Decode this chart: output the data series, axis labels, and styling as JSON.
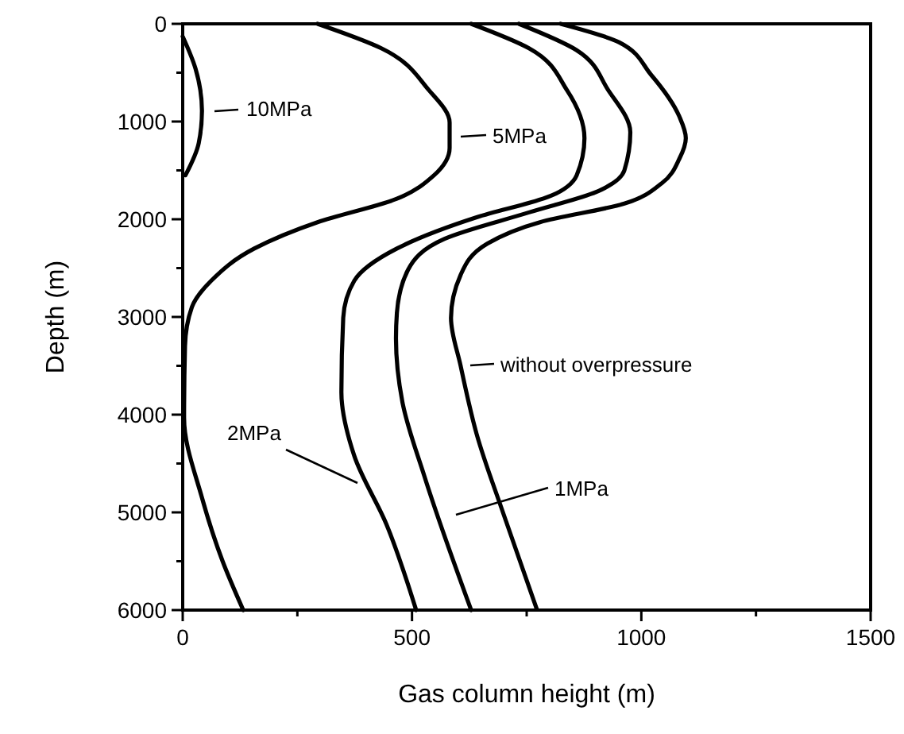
{
  "chart_data": {
    "type": "line",
    "xlabel": "Gas column height (m)",
    "ylabel": "Depth (m)",
    "xlim": [
      0,
      1500
    ],
    "ylim": [
      6000,
      0
    ],
    "xticks": [
      0,
      {
        "value": 250,
        "label": null
      },
      500,
      {
        "value": 750,
        "label": null
      },
      1000,
      {
        "value": 1250,
        "label": null
      },
      1500
    ],
    "yticks": [
      0,
      {
        "value": 500,
        "label": null
      },
      1000,
      {
        "value": 1500,
        "label": null
      },
      2000,
      {
        "value": 2500,
        "label": null
      },
      3000,
      {
        "value": 3500,
        "label": null
      },
      4000,
      {
        "value": 4500,
        "label": null
      },
      5000,
      {
        "value": 5500,
        "label": null
      },
      6000
    ],
    "grid": false,
    "legend": "center",
    "marker": "none",
    "line_style": "solid",
    "series": [
      {
        "name": "10MPa",
        "color": "#000000",
        "x": [
          0,
          28,
          42,
          35,
          6
        ],
        "values": [
          130,
          460,
          890,
          1220,
          1550
        ]
      },
      {
        "name": "5MPa",
        "color": "#000000",
        "x": [
          294,
          433,
          537,
          582,
          582,
          548,
          467,
          294,
          156,
          62,
          20,
          5,
          3,
          42,
          87,
          132
        ],
        "values": [
          0,
          250,
          680,
          1010,
          1270,
          1550,
          1790,
          2030,
          2300,
          2630,
          2900,
          3300,
          4030,
          4850,
          5500,
          6000
        ]
      },
      {
        "name": "2MPa",
        "color": "#000000",
        "x": [
          629,
          755,
          838,
          876,
          859,
          803,
          641,
          467,
          374,
          350,
          346,
          374,
          444,
          509
        ],
        "values": [
          0,
          250,
          680,
          1170,
          1550,
          1760,
          1980,
          2300,
          2630,
          3010,
          3770,
          4420,
          5120,
          6000
        ]
      },
      {
        "name": "1MPa",
        "color": "#000000",
        "x": [
          733,
          859,
          928,
          976,
          963,
          907,
          755,
          571,
          491,
          467,
          465,
          479,
          527,
          629
        ],
        "values": [
          0,
          270,
          680,
          1110,
          1500,
          1710,
          1930,
          2200,
          2520,
          2960,
          3220,
          3870,
          4630,
          6000
        ]
      },
      {
        "name": "without overpressure",
        "color": "#000000",
        "x": [
          824,
          952,
          1021,
          1083,
          1097,
          1083,
          1045,
          963,
          779,
          664,
          606,
          585,
          606,
          641,
          699,
          772
        ],
        "values": [
          0,
          190,
          520,
          950,
          1170,
          1380,
          1630,
          1840,
          2030,
          2250,
          2570,
          3010,
          3500,
          4200,
          5010,
          5990
        ]
      }
    ]
  }
}
